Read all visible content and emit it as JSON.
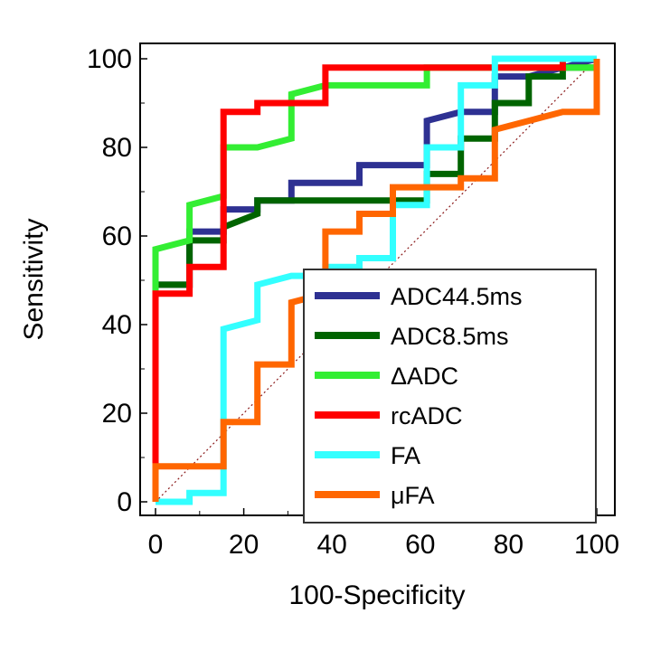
{
  "chart_data": {
    "type": "line",
    "title": "",
    "xlabel": "100-Specificity",
    "ylabel": "Sensitivity",
    "xlim": [
      0,
      100
    ],
    "ylim": [
      0,
      100
    ],
    "xticks": [
      0,
      20,
      40,
      60,
      80,
      100
    ],
    "yticks": [
      0,
      20,
      40,
      60,
      80,
      100
    ],
    "legend_position": "bottom-right",
    "diagonal_reference": true,
    "series": [
      {
        "name": "ADC44.5ms",
        "color": "#2e3192",
        "points": [
          [
            0,
            0
          ],
          [
            0,
            49
          ],
          [
            7.7,
            49
          ],
          [
            7.7,
            61
          ],
          [
            15.4,
            61
          ],
          [
            15.4,
            66
          ],
          [
            23.1,
            66
          ],
          [
            23.1,
            68
          ],
          [
            30.8,
            68
          ],
          [
            30.8,
            72
          ],
          [
            46.2,
            72
          ],
          [
            46.2,
            76
          ],
          [
            61.5,
            76
          ],
          [
            61.5,
            86
          ],
          [
            69.2,
            88
          ],
          [
            76.9,
            88
          ],
          [
            76.9,
            96
          ],
          [
            84.6,
            96
          ],
          [
            92.3,
            98
          ],
          [
            100,
            100
          ]
        ]
      },
      {
        "name": "ADC8.5ms",
        "color": "#006400",
        "points": [
          [
            0,
            0
          ],
          [
            0,
            49
          ],
          [
            7.7,
            49
          ],
          [
            7.7,
            59
          ],
          [
            15.4,
            59
          ],
          [
            15.4,
            62
          ],
          [
            23.1,
            65
          ],
          [
            23.1,
            68
          ],
          [
            61.5,
            68
          ],
          [
            61.5,
            74
          ],
          [
            69.2,
            74
          ],
          [
            69.2,
            82
          ],
          [
            76.9,
            82
          ],
          [
            76.9,
            90
          ],
          [
            84.6,
            90
          ],
          [
            84.6,
            96
          ],
          [
            92.3,
            96
          ],
          [
            92.3,
            98
          ],
          [
            100,
            98
          ]
        ]
      },
      {
        "name": "ΔADC",
        "color": "#33ee33",
        "points": [
          [
            0,
            0
          ],
          [
            0,
            57
          ],
          [
            7.7,
            59
          ],
          [
            7.7,
            67
          ],
          [
            15.4,
            69
          ],
          [
            15.4,
            80
          ],
          [
            23.1,
            80
          ],
          [
            30.8,
            82
          ],
          [
            30.8,
            92
          ],
          [
            38.5,
            94
          ],
          [
            61.5,
            94
          ],
          [
            61.5,
            98
          ],
          [
            100,
            98
          ]
        ]
      },
      {
        "name": "rcADC",
        "color": "#ff0000",
        "points": [
          [
            0,
            0
          ],
          [
            0,
            47
          ],
          [
            7.7,
            47
          ],
          [
            7.7,
            53
          ],
          [
            15.4,
            53
          ],
          [
            15.4,
            88
          ],
          [
            23.1,
            88
          ],
          [
            23.1,
            90
          ],
          [
            38.5,
            90
          ],
          [
            38.5,
            98
          ],
          [
            92.3,
            98
          ],
          [
            92.3,
            100
          ]
        ]
      },
      {
        "name": "FA",
        "color": "#33ffff",
        "points": [
          [
            0,
            0
          ],
          [
            7.7,
            0
          ],
          [
            7.7,
            2
          ],
          [
            15.4,
            2
          ],
          [
            15.4,
            39
          ],
          [
            23.1,
            41
          ],
          [
            23.1,
            49
          ],
          [
            30.8,
            51
          ],
          [
            38.5,
            51
          ],
          [
            38.5,
            53
          ],
          [
            46.2,
            53
          ],
          [
            46.2,
            55
          ],
          [
            53.8,
            55
          ],
          [
            53.8,
            67
          ],
          [
            61.5,
            67
          ],
          [
            61.5,
            80
          ],
          [
            69.2,
            80
          ],
          [
            69.2,
            94
          ],
          [
            76.9,
            94
          ],
          [
            76.9,
            100
          ],
          [
            100,
            100
          ]
        ]
      },
      {
        "name": "μFA",
        "color": "#ff6600",
        "points": [
          [
            0,
            0
          ],
          [
            0,
            8
          ],
          [
            15.4,
            8
          ],
          [
            15.4,
            18
          ],
          [
            23.1,
            18
          ],
          [
            23.1,
            31
          ],
          [
            30.8,
            31
          ],
          [
            30.8,
            45
          ],
          [
            38.5,
            47
          ],
          [
            38.5,
            61
          ],
          [
            46.2,
            61
          ],
          [
            46.2,
            65
          ],
          [
            53.8,
            65
          ],
          [
            53.8,
            71
          ],
          [
            69.2,
            71
          ],
          [
            69.2,
            73
          ],
          [
            76.9,
            73
          ],
          [
            76.9,
            84
          ],
          [
            84.6,
            86
          ],
          [
            92.3,
            88
          ],
          [
            100,
            88
          ],
          [
            100,
            100
          ]
        ]
      }
    ]
  }
}
